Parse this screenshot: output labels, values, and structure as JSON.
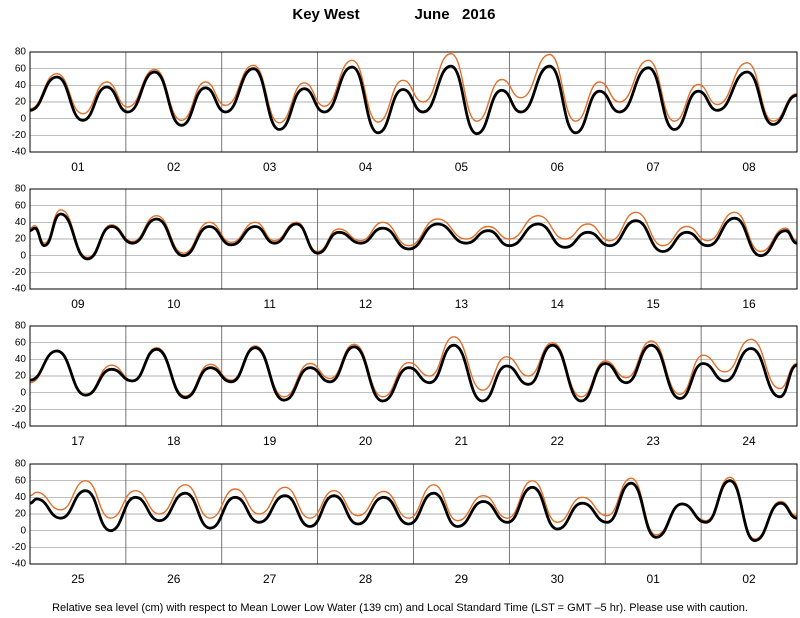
{
  "header": {
    "place": "Key West",
    "month": "June   2016"
  },
  "footer": "Relative sea level (cm) with respect to Mean Lower Low Water (139 cm) and Local Standard Time (LST = GMT –5 hr). Please use with caution.",
  "chart_data": [
    {
      "type": "line",
      "categories": [
        "01",
        "02",
        "03",
        "04",
        "05",
        "06",
        "07",
        "08"
      ],
      "xlim": [
        0,
        8
      ],
      "ylim": [
        -40,
        80
      ],
      "yticks": [
        -40,
        -20,
        0,
        20,
        40,
        60,
        80
      ],
      "grid": true,
      "x": [
        0,
        0.28,
        0.55,
        0.8,
        1.02,
        1.3,
        1.58,
        1.83,
        2.04,
        2.33,
        2.6,
        2.86,
        3.07,
        3.36,
        3.63,
        3.89,
        4.1,
        4.39,
        4.66,
        4.92,
        5.12,
        5.42,
        5.69,
        5.94,
        6.15,
        6.45,
        6.72,
        6.97,
        7.17,
        7.48,
        7.75,
        8
      ],
      "series": [
        {
          "color": "#e0702a",
          "values": [
            12,
            54,
            6,
            44,
            14,
            59,
            -2,
            44,
            16,
            64,
            -5,
            43,
            15,
            70,
            -4,
            46,
            20,
            78,
            -3,
            47,
            25,
            77,
            -3,
            44,
            20,
            70,
            -3,
            41,
            17,
            67,
            -3,
            30
          ]
        },
        {
          "color": "#000000",
          "values": [
            10,
            50,
            -2,
            38,
            8,
            56,
            -8,
            37,
            8,
            60,
            -13,
            36,
            8,
            62,
            -17,
            35,
            8,
            63,
            -18,
            34,
            8,
            63,
            -17,
            33,
            8,
            61,
            -13,
            33,
            10,
            56,
            -7,
            28
          ]
        }
      ]
    },
    {
      "type": "line",
      "categories": [
        "09",
        "10",
        "11",
        "12",
        "13",
        "14",
        "15",
        "16"
      ],
      "xlim": [
        0,
        8
      ],
      "ylim": [
        -40,
        80
      ],
      "yticks": [
        -40,
        -20,
        0,
        20,
        40,
        60,
        80
      ],
      "grid": true,
      "x": [
        0,
        0.05,
        0.15,
        0.32,
        0.6,
        0.85,
        1.07,
        1.32,
        1.6,
        1.87,
        2.1,
        2.35,
        2.55,
        2.78,
        3,
        3.22,
        3.45,
        3.68,
        3.95,
        4.25,
        4.55,
        4.78,
        5,
        5.3,
        5.58,
        5.82,
        6.05,
        6.32,
        6.6,
        6.85,
        7.07,
        7.35,
        7.62,
        7.88,
        8
      ],
      "series": [
        {
          "color": "#e0702a",
          "values": [
            33,
            36,
            15,
            55,
            -2,
            37,
            17,
            48,
            3,
            40,
            16,
            40,
            18,
            40,
            5,
            32,
            18,
            40,
            12,
            44,
            20,
            35,
            20,
            48,
            20,
            38,
            18,
            52,
            12,
            35,
            18,
            52,
            5,
            33,
            18
          ]
        },
        {
          "color": "#000000",
          "values": [
            30,
            33,
            12,
            50,
            -4,
            35,
            15,
            44,
            0,
            35,
            13,
            35,
            15,
            38,
            3,
            28,
            15,
            33,
            8,
            38,
            15,
            30,
            12,
            38,
            10,
            28,
            12,
            42,
            5,
            28,
            12,
            45,
            0,
            30,
            15
          ]
        }
      ]
    },
    {
      "type": "line",
      "categories": [
        "17",
        "18",
        "19",
        "20",
        "21",
        "22",
        "23",
        "24"
      ],
      "xlim": [
        0,
        8
      ],
      "ylim": [
        -40,
        80
      ],
      "yticks": [
        -40,
        -20,
        0,
        20,
        40,
        60,
        80
      ],
      "grid": true,
      "x": [
        0,
        0.28,
        0.58,
        0.85,
        1.07,
        1.32,
        1.62,
        1.88,
        2.1,
        2.35,
        2.65,
        2.92,
        3.13,
        3.38,
        3.68,
        3.95,
        4.17,
        4.42,
        4.72,
        4.97,
        5.2,
        5.45,
        5.75,
        6,
        6.22,
        6.48,
        6.78,
        7.02,
        7.25,
        7.52,
        7.82,
        8
      ],
      "series": [
        {
          "color": "#e0702a",
          "values": [
            12,
            51,
            -2,
            33,
            15,
            54,
            -4,
            34,
            15,
            56,
            -5,
            35,
            17,
            58,
            -5,
            36,
            20,
            67,
            3,
            43,
            20,
            60,
            -5,
            38,
            18,
            62,
            -2,
            45,
            25,
            64,
            5,
            35
          ]
        },
        {
          "color": "#000000",
          "values": [
            15,
            50,
            -3,
            28,
            14,
            52,
            -6,
            30,
            13,
            54,
            -9,
            30,
            13,
            55,
            -10,
            30,
            12,
            57,
            -10,
            32,
            10,
            57,
            -10,
            35,
            12,
            57,
            -7,
            35,
            14,
            53,
            -5,
            33
          ]
        }
      ]
    },
    {
      "type": "line",
      "categories": [
        "25",
        "26",
        "27",
        "28",
        "29",
        "30",
        "01",
        "02"
      ],
      "xlim": [
        0,
        8
      ],
      "ylim": [
        -40,
        80
      ],
      "yticks": [
        -40,
        -20,
        0,
        20,
        40,
        60,
        80
      ],
      "grid": true,
      "x": [
        0,
        0.07,
        0.32,
        0.58,
        0.84,
        1.1,
        1.35,
        1.62,
        1.88,
        2.14,
        2.39,
        2.66,
        2.92,
        3.17,
        3.42,
        3.69,
        3.95,
        4.21,
        4.46,
        4.73,
        4.98,
        5.24,
        5.5,
        5.76,
        6.02,
        6.27,
        6.53,
        6.8,
        7.05,
        7.3,
        7.56,
        7.83,
        8
      ],
      "series": [
        {
          "color": "#e0702a",
          "values": [
            42,
            46,
            25,
            60,
            15,
            48,
            20,
            55,
            15,
            50,
            20,
            52,
            15,
            48,
            18,
            47,
            15,
            55,
            12,
            42,
            15,
            60,
            10,
            40,
            18,
            63,
            -5,
            33,
            12,
            64,
            -10,
            35,
            18
          ]
        },
        {
          "color": "#000000",
          "values": [
            33,
            38,
            15,
            48,
            0,
            40,
            12,
            45,
            3,
            40,
            10,
            42,
            5,
            42,
            8,
            40,
            8,
            45,
            5,
            35,
            10,
            52,
            2,
            33,
            10,
            57,
            -8,
            32,
            10,
            60,
            -12,
            33,
            15
          ]
        }
      ]
    }
  ]
}
